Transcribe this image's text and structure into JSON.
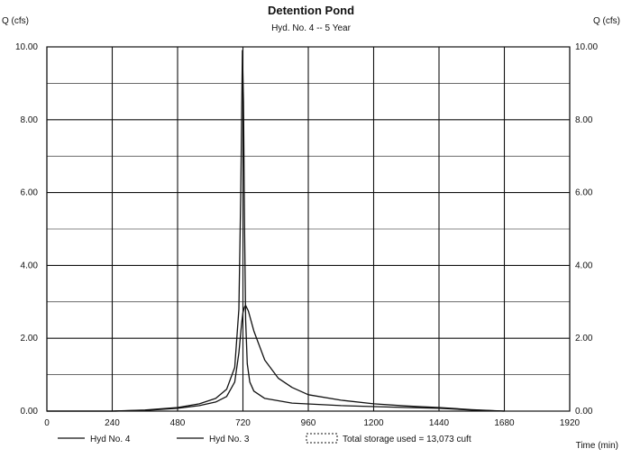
{
  "chart_data": {
    "type": "line",
    "title": "Detention Pond",
    "subtitle": "Hyd. No. 4 -- 5 Year",
    "ylabel_left": "Q (cfs)",
    "ylabel_right": "Q (cfs)",
    "xlabel": "Time (min)",
    "xlim": [
      0,
      1920
    ],
    "ylim": [
      0,
      10
    ],
    "x_ticks": [
      0,
      240,
      480,
      720,
      960,
      1200,
      1440,
      1680,
      1920
    ],
    "x_tick_labels": [
      "0",
      "240",
      "480",
      "720",
      "960",
      "1200",
      "1440",
      "1680",
      "1920"
    ],
    "y_ticks": [
      0,
      2,
      4,
      6,
      8,
      10
    ],
    "y_tick_labels_left": [
      "0.00",
      "2.00",
      "4.00",
      "6.00",
      "8.00",
      "10.00"
    ],
    "y_tick_labels_right": [
      "0.00",
      "2.00",
      "4.00",
      "6.00",
      "8.00",
      "10.00"
    ],
    "grid": true,
    "legend_position": "bottom",
    "series": [
      {
        "name": "Hyd No. 4",
        "x": [
          0,
          240,
          360,
          480,
          560,
          620,
          660,
          690,
          705,
          715,
          720,
          725,
          730,
          740,
          760,
          800,
          850,
          900,
          960,
          1080,
          1200,
          1320,
          1440,
          1560,
          1680
        ],
        "y": [
          0,
          0,
          0.02,
          0.08,
          0.15,
          0.25,
          0.4,
          0.8,
          1.6,
          2.4,
          2.7,
          2.85,
          2.9,
          2.75,
          2.2,
          1.4,
          0.9,
          0.65,
          0.45,
          0.3,
          0.2,
          0.14,
          0.1,
          0.04,
          0
        ]
      },
      {
        "name": "Hyd No. 3",
        "x": [
          0,
          240,
          360,
          480,
          560,
          620,
          660,
          690,
          705,
          712,
          718,
          722,
          726,
          730,
          736,
          745,
          760,
          800,
          900,
          1080,
          1320,
          1440,
          1560,
          1680
        ],
        "y": [
          0,
          0,
          0.03,
          0.1,
          0.2,
          0.35,
          0.6,
          1.2,
          2.8,
          6.0,
          9.9,
          8.5,
          5.0,
          2.5,
          1.3,
          0.8,
          0.55,
          0.35,
          0.22,
          0.15,
          0.1,
          0.08,
          0.03,
          0
        ]
      }
    ],
    "storage_text": "Total storage used = 13,073 cuft",
    "colors": {
      "line": "#111111",
      "grid": "#111111"
    }
  }
}
